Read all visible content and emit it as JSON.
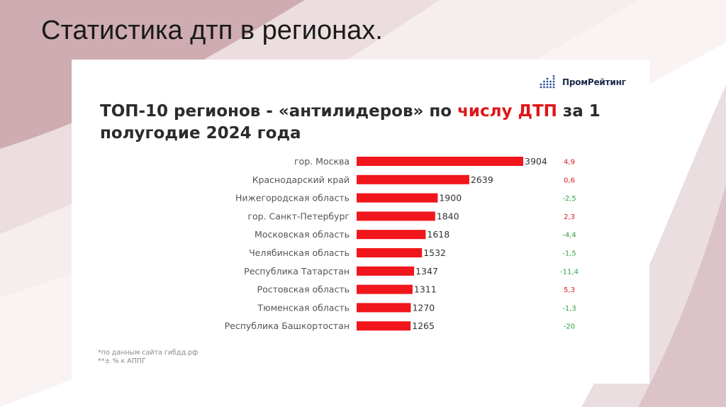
{
  "slide": {
    "title": "Статистика дтп в регионах."
  },
  "brand": {
    "name": "ПромРейтинг",
    "icon": "bar-dots-logo-icon"
  },
  "chart_title": {
    "part1": "ТОП-10 регионов - «антилидеров» по ",
    "highlight": "числу ДТП",
    "part2": " за 1 полугодие 2024 года"
  },
  "colors": {
    "bar": "#f0161b",
    "highlight": "#e0161b",
    "positive_change": "#e0161b",
    "negative_change": "#2e9e3f",
    "label": "#555555"
  },
  "chart_data": {
    "type": "bar",
    "orientation": "horizontal",
    "title": "ТОП-10 регионов - «антилидеров» по числу ДТП за 1 полугодие 2024 года",
    "categories": [
      "гор. Москва",
      "Краснодарский край",
      "Нижегородская область",
      "гор. Санкт-Петербург",
      "Московская область",
      "Челябинская область",
      "Республика Татарстан",
      "Ростовская область",
      "Тюменская область",
      "Республика Башкортостан"
    ],
    "values": [
      3904,
      2639,
      1900,
      1840,
      1618,
      1532,
      1347,
      1311,
      1270,
      1265
    ],
    "change_labels": [
      "4,9",
      "0,6",
      "-2,5",
      "2,3",
      "-4,4",
      "-1,5",
      "-11,4",
      "5,3",
      "-1,3",
      "-20"
    ],
    "xlim": [
      0,
      3904
    ],
    "grid": false
  },
  "footnotes": [
    "*по данным сайта гибдд.рф",
    "**± % к АППГ"
  ]
}
